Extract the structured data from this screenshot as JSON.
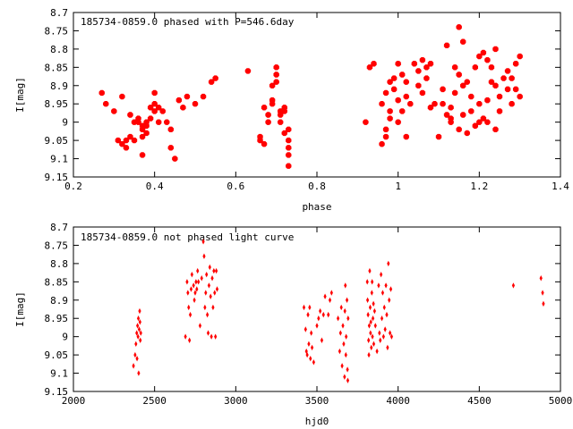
{
  "chart_data": [
    {
      "type": "scatter",
      "title": "185734-0859.0 phased with P=546.6day",
      "xlabel": "phase",
      "ylabel": "I[mag]",
      "xlim": [
        0.2,
        1.4
      ],
      "ylim": [
        9.15,
        8.7
      ],
      "y_inverted": true,
      "x_ticks": [
        "0.2",
        "0.4",
        "0.6",
        "0.8",
        "1",
        "1.2",
        "1.4"
      ],
      "y_ticks": [
        "8.7",
        "8.75",
        "8.8",
        "8.85",
        "8.9",
        "8.95",
        "9",
        "9.05",
        "9.1",
        "9.15"
      ],
      "marker": "filled-octagon",
      "marker_color": "#ff0000",
      "grid": false,
      "points": [
        [
          0.27,
          8.92
        ],
        [
          0.28,
          8.95
        ],
        [
          0.3,
          8.97
        ],
        [
          0.31,
          9.05
        ],
        [
          0.32,
          9.06
        ],
        [
          0.32,
          8.93
        ],
        [
          0.33,
          9.07
        ],
        [
          0.33,
          9.05
        ],
        [
          0.34,
          9.04
        ],
        [
          0.34,
          8.98
        ],
        [
          0.35,
          9.0
        ],
        [
          0.35,
          9.05
        ],
        [
          0.36,
          9.0
        ],
        [
          0.36,
          8.99
        ],
        [
          0.37,
          9.01
        ],
        [
          0.37,
          9.02
        ],
        [
          0.37,
          9.04
        ],
        [
          0.38,
          9.0
        ],
        [
          0.38,
          9.03
        ],
        [
          0.38,
          9.01
        ],
        [
          0.37,
          9.09
        ],
        [
          0.39,
          8.96
        ],
        [
          0.39,
          8.99
        ],
        [
          0.4,
          8.95
        ],
        [
          0.4,
          8.92
        ],
        [
          0.4,
          8.97
        ],
        [
          0.41,
          8.96
        ],
        [
          0.41,
          9.0
        ],
        [
          0.42,
          8.97
        ],
        [
          0.43,
          9.0
        ],
        [
          0.44,
          9.02
        ],
        [
          0.44,
          9.07
        ],
        [
          0.45,
          9.1
        ],
        [
          0.46,
          8.94
        ],
        [
          0.47,
          8.96
        ],
        [
          0.48,
          8.93
        ],
        [
          0.5,
          8.95
        ],
        [
          0.52,
          8.93
        ],
        [
          0.54,
          8.89
        ],
        [
          0.55,
          8.88
        ],
        [
          0.63,
          8.86
        ],
        [
          0.66,
          9.05
        ],
        [
          0.66,
          9.04
        ],
        [
          0.67,
          9.06
        ],
        [
          0.67,
          8.96
        ],
        [
          0.68,
          8.98
        ],
        [
          0.68,
          9.0
        ],
        [
          0.69,
          8.9
        ],
        [
          0.69,
          8.95
        ],
        [
          0.69,
          8.94
        ],
        [
          0.7,
          8.89
        ],
        [
          0.7,
          8.85
        ],
        [
          0.7,
          8.87
        ],
        [
          0.71,
          9.0
        ],
        [
          0.71,
          8.97
        ],
        [
          0.71,
          8.98
        ],
        [
          0.72,
          8.97
        ],
        [
          0.72,
          8.96
        ],
        [
          0.72,
          9.03
        ],
        [
          0.73,
          9.05
        ],
        [
          0.73,
          9.07
        ],
        [
          0.73,
          9.09
        ],
        [
          0.73,
          9.12
        ],
        [
          0.73,
          9.02
        ],
        [
          0.92,
          9.0
        ],
        [
          0.93,
          8.85
        ],
        [
          0.94,
          8.84
        ],
        [
          0.96,
          9.06
        ],
        [
          0.96,
          8.95
        ],
        [
          0.97,
          8.92
        ],
        [
          0.97,
          9.02
        ],
        [
          0.97,
          9.04
        ],
        [
          0.98,
          8.99
        ],
        [
          0.98,
          8.89
        ],
        [
          0.98,
          8.97
        ],
        [
          0.99,
          8.88
        ],
        [
          0.99,
          8.91
        ],
        [
          1.0,
          8.94
        ],
        [
          1.0,
          8.84
        ],
        [
          1.0,
          9.0
        ],
        [
          1.01,
          8.87
        ],
        [
          1.01,
          8.97
        ],
        [
          1.02,
          8.93
        ],
        [
          1.02,
          8.89
        ],
        [
          1.02,
          9.04
        ],
        [
          1.03,
          8.95
        ],
        [
          1.04,
          8.84
        ],
        [
          1.05,
          8.9
        ],
        [
          1.05,
          8.86
        ],
        [
          1.06,
          8.83
        ],
        [
          1.06,
          8.92
        ],
        [
          1.07,
          8.85
        ],
        [
          1.07,
          8.88
        ],
        [
          1.08,
          8.96
        ],
        [
          1.08,
          8.84
        ],
        [
          1.09,
          8.95
        ],
        [
          1.1,
          9.04
        ],
        [
          1.11,
          8.91
        ],
        [
          1.11,
          8.95
        ],
        [
          1.12,
          8.79
        ],
        [
          1.13,
          8.99
        ],
        [
          1.13,
          8.96
        ],
        [
          1.14,
          8.92
        ],
        [
          1.14,
          8.85
        ],
        [
          1.15,
          8.74
        ],
        [
          1.15,
          8.87
        ],
        [
          1.16,
          8.78
        ],
        [
          1.16,
          8.9
        ],
        [
          1.16,
          8.98
        ],
        [
          1.17,
          8.89
        ],
        [
          1.17,
          9.03
        ],
        [
          1.18,
          8.93
        ],
        [
          1.18,
          8.97
        ],
        [
          1.19,
          8.85
        ],
        [
          1.19,
          9.01
        ],
        [
          1.2,
          8.82
        ],
        [
          1.2,
          8.95
        ],
        [
          1.21,
          8.81
        ],
        [
          1.21,
          8.99
        ],
        [
          1.22,
          8.83
        ],
        [
          1.22,
          8.94
        ],
        [
          1.23,
          8.89
        ],
        [
          1.23,
          8.85
        ],
        [
          1.24,
          8.8
        ],
        [
          1.24,
          8.9
        ],
        [
          1.25,
          8.97
        ],
        [
          1.25,
          8.93
        ],
        [
          1.26,
          8.88
        ],
        [
          1.27,
          8.91
        ],
        [
          1.27,
          8.86
        ],
        [
          1.28,
          8.95
        ],
        [
          1.28,
          8.88
        ],
        [
          1.29,
          8.91
        ],
        [
          1.29,
          8.84
        ],
        [
          1.3,
          8.93
        ],
        [
          1.3,
          8.82
        ],
        [
          1.15,
          9.02
        ],
        [
          1.2,
          9.0
        ],
        [
          1.13,
          9.0
        ],
        [
          1.12,
          8.98
        ],
        [
          1.24,
          9.02
        ],
        [
          1.22,
          9.0
        ]
      ]
    },
    {
      "type": "scatter",
      "title": "185734-0859.0 not phased light curve",
      "xlabel": "hjd0",
      "ylabel": "I[mag]",
      "xlim": [
        2000,
        5000
      ],
      "ylim": [
        9.15,
        8.7
      ],
      "y_inverted": true,
      "x_ticks": [
        "2000",
        "2500",
        "3000",
        "3500",
        "4000",
        "4500",
        "5000"
      ],
      "y_ticks": [
        "8.7",
        "8.75",
        "8.8",
        "8.85",
        "8.9",
        "8.95",
        "9",
        "9.05",
        "9.1",
        "9.15"
      ],
      "marker": "small-diamond",
      "marker_color": "#ff0000",
      "grid": false,
      "points": [
        [
          2370,
          9.08
        ],
        [
          2380,
          9.05
        ],
        [
          2385,
          9.02
        ],
        [
          2390,
          8.99
        ],
        [
          2392,
          9.06
        ],
        [
          2395,
          8.97
        ],
        [
          2398,
          9.0
        ],
        [
          2400,
          8.95
        ],
        [
          2402,
          9.1
        ],
        [
          2405,
          8.98
        ],
        [
          2408,
          8.93
        ],
        [
          2410,
          8.96
        ],
        [
          2412,
          9.01
        ],
        [
          2415,
          8.99
        ],
        [
          2690,
          9.0
        ],
        [
          2700,
          8.85
        ],
        [
          2705,
          8.88
        ],
        [
          2710,
          8.92
        ],
        [
          2715,
          9.01
        ],
        [
          2720,
          8.94
        ],
        [
          2725,
          8.87
        ],
        [
          2730,
          8.83
        ],
        [
          2740,
          8.86
        ],
        [
          2745,
          8.9
        ],
        [
          2750,
          8.88
        ],
        [
          2755,
          8.85
        ],
        [
          2760,
          8.87
        ],
        [
          2765,
          8.82
        ],
        [
          2770,
          8.85
        ],
        [
          2780,
          8.97
        ],
        [
          2790,
          8.84
        ],
        [
          2800,
          8.74
        ],
        [
          2805,
          8.78
        ],
        [
          2810,
          8.92
        ],
        [
          2815,
          8.88
        ],
        [
          2820,
          8.83
        ],
        [
          2825,
          8.94
        ],
        [
          2830,
          8.99
        ],
        [
          2835,
          8.86
        ],
        [
          2840,
          8.81
        ],
        [
          2845,
          8.89
        ],
        [
          2850,
          9.0
        ],
        [
          2855,
          8.84
        ],
        [
          2860,
          8.92
        ],
        [
          2865,
          8.82
        ],
        [
          2870,
          8.88
        ],
        [
          2875,
          9.0
        ],
        [
          2880,
          8.82
        ],
        [
          2885,
          8.87
        ],
        [
          3420,
          8.92
        ],
        [
          3430,
          8.98
        ],
        [
          3435,
          9.04
        ],
        [
          3440,
          9.05
        ],
        [
          3445,
          8.94
        ],
        [
          3450,
          9.02
        ],
        [
          3455,
          8.92
        ],
        [
          3460,
          9.06
        ],
        [
          3465,
          8.99
        ],
        [
          3470,
          9.03
        ],
        [
          3480,
          9.07
        ],
        [
          3500,
          8.97
        ],
        [
          3510,
          8.95
        ],
        [
          3520,
          8.93
        ],
        [
          3530,
          9.01
        ],
        [
          3540,
          8.94
        ],
        [
          3550,
          8.89
        ],
        [
          3570,
          8.94
        ],
        [
          3580,
          8.9
        ],
        [
          3590,
          8.88
        ],
        [
          3630,
          8.95
        ],
        [
          3640,
          9.04
        ],
        [
          3645,
          8.99
        ],
        [
          3650,
          8.92
        ],
        [
          3655,
          9.08
        ],
        [
          3660,
          8.97
        ],
        [
          3665,
          9.02
        ],
        [
          3670,
          9.11
        ],
        [
          3672,
          8.93
        ],
        [
          3675,
          8.86
        ],
        [
          3678,
          9.05
        ],
        [
          3680,
          9.0
        ],
        [
          3685,
          8.9
        ],
        [
          3688,
          9.09
        ],
        [
          3690,
          9.12
        ],
        [
          3692,
          8.95
        ],
        [
          3810,
          8.85
        ],
        [
          3812,
          8.9
        ],
        [
          3815,
          8.94
        ],
        [
          3818,
          9.01
        ],
        [
          3820,
          9.05
        ],
        [
          3822,
          8.97
        ],
        [
          3825,
          8.82
        ],
        [
          3828,
          8.92
        ],
        [
          3830,
          8.99
        ],
        [
          3832,
          8.96
        ],
        [
          3835,
          9.03
        ],
        [
          3838,
          8.88
        ],
        [
          3840,
          8.85
        ],
        [
          3842,
          9.0
        ],
        [
          3845,
          8.95
        ],
        [
          3848,
          8.91
        ],
        [
          3850,
          9.02
        ],
        [
          3855,
          8.93
        ],
        [
          3860,
          8.97
        ],
        [
          3870,
          9.04
        ],
        [
          3880,
          8.86
        ],
        [
          3885,
          8.99
        ],
        [
          3890,
          9.01
        ],
        [
          3895,
          8.83
        ],
        [
          3900,
          8.95
        ],
        [
          3905,
          8.88
        ],
        [
          3910,
          9.0
        ],
        [
          3915,
          8.92
        ],
        [
          3920,
          8.98
        ],
        [
          3925,
          8.86
        ],
        [
          3930,
          8.94
        ],
        [
          3935,
          9.03
        ],
        [
          3940,
          8.8
        ],
        [
          3945,
          8.9
        ],
        [
          3950,
          8.99
        ],
        [
          3955,
          8.87
        ],
        [
          3960,
          9.0
        ],
        [
          4710,
          8.86
        ],
        [
          4880,
          8.84
        ],
        [
          4890,
          8.88
        ],
        [
          4895,
          8.91
        ]
      ]
    }
  ]
}
